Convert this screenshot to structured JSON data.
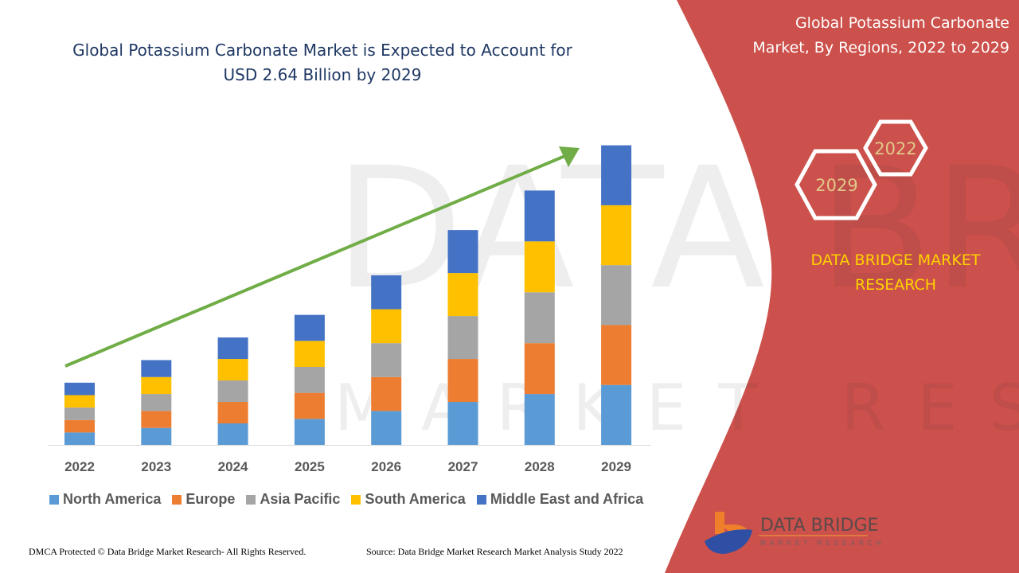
{
  "header": {
    "title_line1": "Global Potassium Carbonate Market is Expected to Account for",
    "title_line2": "USD 2.64 Billion by 2029",
    "side_title_line1": "Global Potassium Carbonate",
    "side_title_line2": "Market, By Regions, 2022 to 2029"
  },
  "hexagons": {
    "front": "2029",
    "back": "2022"
  },
  "brand": {
    "line1": "DATA BRIDGE MARKET",
    "line2": "RESEARCH",
    "logo_text": "DATA BRIDGE",
    "logo_sub": "MARKET RESEARCH"
  },
  "footer": {
    "left": "DMCA Protected © Data Bridge Market Research- All Rights Reserved.",
    "right": "Source: Data Bridge Market Research Market Analysis Study 2022"
  },
  "colors": {
    "panel": "#cc504b",
    "title": "#1f3864",
    "brand_text": "#ffd300",
    "arrow": "#70ad47"
  },
  "chart_data": {
    "type": "bar",
    "stacked": true,
    "categories": [
      "2022",
      "2023",
      "2024",
      "2025",
      "2026",
      "2027",
      "2028",
      "2029"
    ],
    "ylabel": "",
    "xlabel": "",
    "grid": false,
    "legend_position": "bottom",
    "trend_arrow": true,
    "ylim": [
      0,
      2.64
    ],
    "series": [
      {
        "name": "North America",
        "color": "#5b9bd5",
        "values": [
          0.11,
          0.15,
          0.19,
          0.23,
          0.3,
          0.38,
          0.45,
          0.53
        ]
      },
      {
        "name": "Europe",
        "color": "#ed7d31",
        "values": [
          0.11,
          0.15,
          0.19,
          0.23,
          0.3,
          0.38,
          0.45,
          0.53
        ]
      },
      {
        "name": "Asia Pacific",
        "color": "#a5a5a5",
        "values": [
          0.11,
          0.15,
          0.19,
          0.23,
          0.3,
          0.38,
          0.45,
          0.53
        ]
      },
      {
        "name": "South America",
        "color": "#ffc000",
        "values": [
          0.11,
          0.15,
          0.19,
          0.23,
          0.3,
          0.38,
          0.45,
          0.53
        ]
      },
      {
        "name": "Middle East and Africa",
        "color": "#4472c4",
        "values": [
          0.11,
          0.15,
          0.19,
          0.23,
          0.3,
          0.38,
          0.45,
          0.53
        ]
      }
    ]
  }
}
